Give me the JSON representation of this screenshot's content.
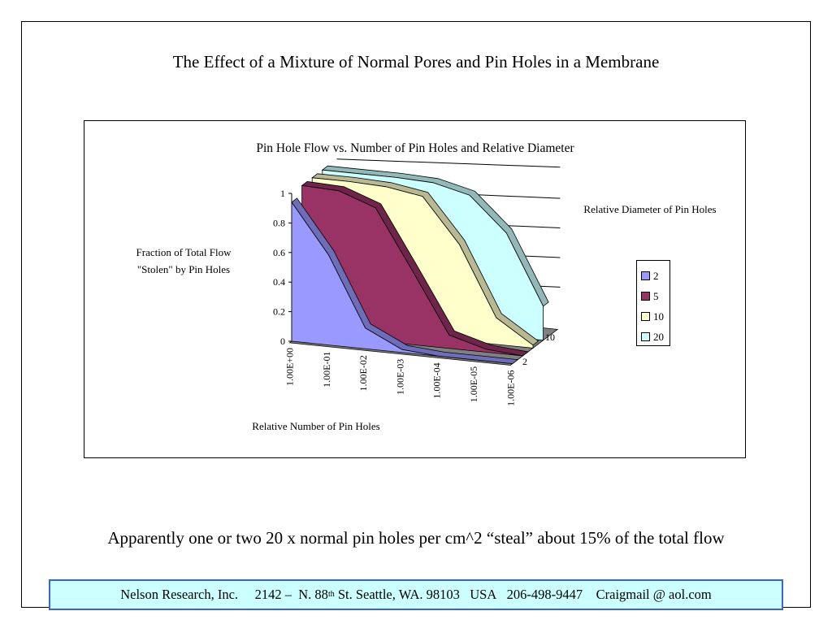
{
  "slide": {
    "title": "The Effect of a Mixture of Normal Pores and Pin Holes in a Membrane",
    "conclusion": "Apparently one or two 20 x normal pin holes per cm^2 “steal” about 15% of the total flow"
  },
  "footer": {
    "company": "Nelson Research, Inc.",
    "address_pre": "2142 –  N. 88",
    "address_sup": "th",
    "address_post": " St. Seattle, WA. 98103   USA",
    "phone": "206-498-9447",
    "email": "Craigmail @ aol.com"
  },
  "legend_title": "Relative Diameter of Pin Holes",
  "chart_data": {
    "type": "area",
    "subtype": "3d-area",
    "title": "Pin Hole Flow vs. Number of Pin Holes and Relative Diameter",
    "xlabel": "Relative Number of Pin Holes",
    "ylabel": "Fraction of Total Flow \"Stolen\" by Pin Holes",
    "ylim": [
      0,
      1
    ],
    "y_ticks": [
      "0",
      "0.2",
      "0.4",
      "0.6",
      "0.8",
      "1"
    ],
    "categories": [
      "1.00E+00",
      "1.00E-01",
      "1.00E-02",
      "1.00E-03",
      "1.00E-04",
      "1.00E-05",
      "1.00E-06"
    ],
    "depth_ticks": [
      "2",
      "10"
    ],
    "legend_position": "right",
    "grid": true,
    "series": [
      {
        "name": "2",
        "color": "#9999ff",
        "values": [
          0.94,
          0.61,
          0.14,
          0.02,
          0.0,
          0.0,
          0.0
        ]
      },
      {
        "name": "5",
        "color": "#993366",
        "values": [
          1.0,
          0.99,
          0.9,
          0.5,
          0.09,
          0.02,
          0.0
        ]
      },
      {
        "name": "10",
        "color": "#ffffcc",
        "values": [
          1.0,
          1.0,
          0.99,
          0.95,
          0.65,
          0.18,
          0.02
        ]
      },
      {
        "name": "20",
        "color": "#ccffff",
        "values": [
          1.0,
          1.0,
          1.0,
          0.99,
          0.93,
          0.7,
          0.23
        ]
      }
    ]
  }
}
